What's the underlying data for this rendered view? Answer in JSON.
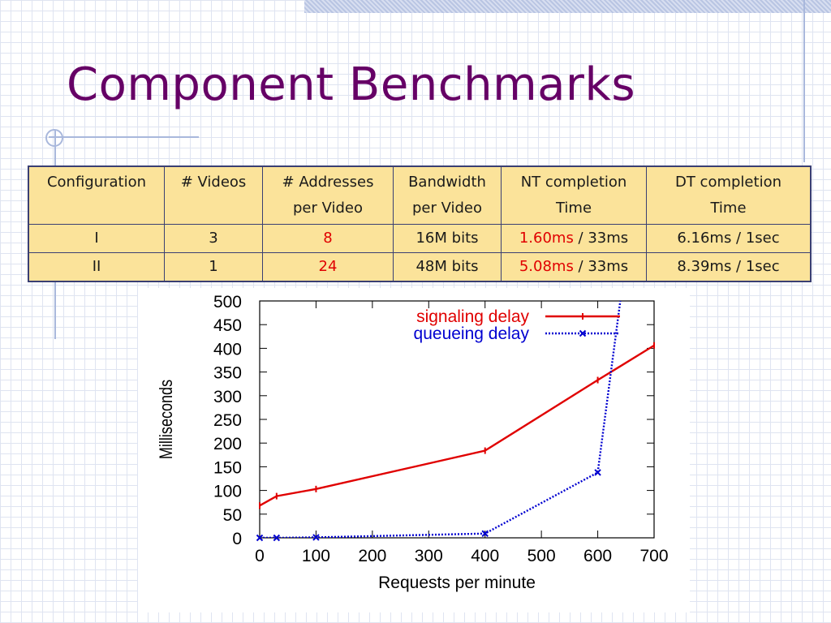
{
  "title": "Component Benchmarks",
  "table": {
    "headers": [
      [
        "Configuration"
      ],
      [
        "# Videos"
      ],
      [
        "# Addresses",
        "per Video"
      ],
      [
        "Bandwidth",
        "per Video"
      ],
      [
        "NT completion",
        "Time"
      ],
      [
        "DT completion",
        "Time"
      ]
    ],
    "rows": [
      {
        "config": "I",
        "videos": "3",
        "addresses": "8",
        "bandwidth": "16M bits",
        "nt_value": "1.60ms",
        "nt_rest": " / 33ms",
        "dt": "6.16ms / 1sec"
      },
      {
        "config": "II",
        "videos": "1",
        "addresses": "24",
        "bandwidth": "48M bits",
        "nt_value": "5.08ms",
        "nt_rest": " / 33ms",
        "dt": "8.39ms / 1sec"
      }
    ]
  },
  "colors": {
    "title": "#660066",
    "table_fill": "#fbe39a",
    "highlight": "#e00000",
    "signaling": "#e00000",
    "queueing": "#0000d0"
  },
  "chart_data": {
    "type": "line",
    "xlabel": "Requests per minute",
    "ylabel": "Milliseconds",
    "xlim": [
      0,
      700
    ],
    "ylim": [
      0,
      500
    ],
    "xticks": [
      0,
      100,
      200,
      300,
      400,
      500,
      600,
      700
    ],
    "yticks": [
      0,
      50,
      100,
      150,
      200,
      250,
      300,
      350,
      400,
      450,
      500
    ],
    "grid": false,
    "legend": "top-right",
    "series": [
      {
        "name": "signaling delay",
        "style": "solid",
        "points": [
          [
            0,
            68
          ],
          [
            30,
            88
          ],
          [
            100,
            103
          ],
          [
            400,
            184
          ],
          [
            600,
            333
          ],
          [
            700,
            406
          ]
        ]
      },
      {
        "name": "queueing delay",
        "style": "dotted",
        "points": [
          [
            0,
            0
          ],
          [
            30,
            0
          ],
          [
            100,
            1
          ],
          [
            400,
            9
          ],
          [
            600,
            138
          ],
          [
            640,
            500
          ]
        ]
      }
    ]
  }
}
